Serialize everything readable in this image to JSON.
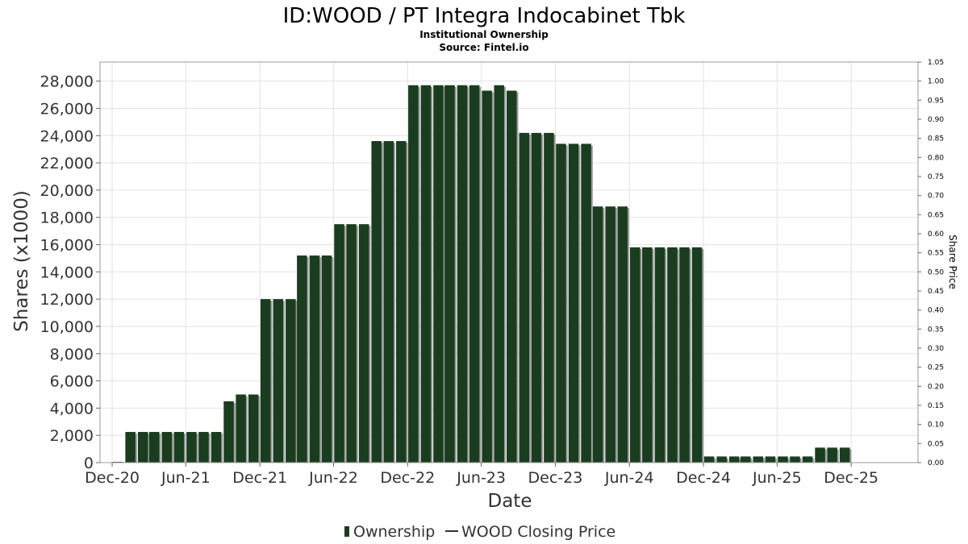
{
  "chart_data": {
    "type": "bar",
    "title": "ID:WOOD / PT Integra Indocabinet Tbk",
    "subtitle_lines": [
      "Institutional Ownership",
      "Source: Fintel.io"
    ],
    "xlabel": "Date",
    "ylabel": "Shares (x1000)",
    "y2label": "Share Price",
    "ylim": [
      0,
      29400
    ],
    "y_ticks": [
      0,
      2000,
      4000,
      6000,
      8000,
      10000,
      12000,
      14000,
      16000,
      18000,
      20000,
      22000,
      24000,
      26000,
      28000
    ],
    "y_tick_labels": [
      "0",
      "2,000",
      "4,000",
      "6,000",
      "8,000",
      "10,000",
      "12,000",
      "14,000",
      "16,000",
      "18,000",
      "20,000",
      "22,000",
      "24,000",
      "26,000",
      "28,000"
    ],
    "y2lim": [
      0,
      1.05
    ],
    "y2_ticks": [
      0.0,
      0.05,
      0.1,
      0.15,
      0.2,
      0.25,
      0.3,
      0.35,
      0.4,
      0.45,
      0.5,
      0.55,
      0.6,
      0.65,
      0.7,
      0.75,
      0.8,
      0.85,
      0.9,
      0.95,
      1.0,
      1.05
    ],
    "y2_tick_labels": [
      "0.00",
      "0.05",
      "0.10",
      "0.15",
      "0.20",
      "0.25",
      "0.30",
      "0.35",
      "0.40",
      "0.45",
      "0.50",
      "0.55",
      "0.60",
      "0.65",
      "0.70",
      "0.75",
      "0.80",
      "0.85",
      "0.90",
      "0.95",
      "1.00",
      "1.05"
    ],
    "x_range": [
      "2020-11-01",
      "2026-05-15"
    ],
    "x_ticks": [
      "2020-12-01",
      "2021-06-01",
      "2021-12-01",
      "2022-06-01",
      "2022-12-01",
      "2023-06-01",
      "2023-12-01",
      "2024-06-01",
      "2024-12-01",
      "2025-06-01",
      "2025-12-01"
    ],
    "x_tick_labels": [
      "Dec-20",
      "Jun-21",
      "Dec-21",
      "Jun-22",
      "Dec-22",
      "Jun-23",
      "Dec-23",
      "Jun-24",
      "Dec-24",
      "Jun-25",
      "Dec-25"
    ],
    "grid": true,
    "legend_placement": "bottom-center",
    "series": [
      {
        "name": "Ownership",
        "type": "bar",
        "color": "#1a3d1f",
        "x": [
          "2020-12-15",
          "2021-01-15",
          "2021-02-15",
          "2021-03-15",
          "2021-04-15",
          "2021-05-15",
          "2021-06-15",
          "2021-07-15",
          "2021-08-15",
          "2021-09-15",
          "2021-10-15",
          "2021-11-15",
          "2021-12-15",
          "2022-01-15",
          "2022-02-15",
          "2022-03-15",
          "2022-04-15",
          "2022-05-15",
          "2022-06-15",
          "2022-07-15",
          "2022-08-15",
          "2022-09-15",
          "2022-10-15",
          "2022-11-15",
          "2022-12-15",
          "2023-01-15",
          "2023-02-15",
          "2023-03-15",
          "2023-04-15",
          "2023-05-15",
          "2023-06-15",
          "2023-07-15",
          "2023-08-15",
          "2023-09-15",
          "2023-10-15",
          "2023-11-15",
          "2023-12-15",
          "2024-01-15",
          "2024-02-15",
          "2024-03-15",
          "2024-04-15",
          "2024-05-15",
          "2024-06-15",
          "2024-07-15",
          "2024-08-15",
          "2024-09-15",
          "2024-10-15",
          "2024-11-15",
          "2024-12-15",
          "2025-01-15",
          "2025-02-15",
          "2025-03-15",
          "2025-04-15",
          "2025-05-15",
          "2025-06-15",
          "2025-07-15",
          "2025-08-15",
          "2025-09-15",
          "2025-10-15",
          "2025-11-15"
        ],
        "values": [
          0,
          2250,
          2250,
          2250,
          2250,
          2250,
          2250,
          2250,
          2250,
          4500,
          5000,
          5000,
          12000,
          12000,
          12000,
          15200,
          15200,
          15200,
          17500,
          17500,
          17500,
          23600,
          23600,
          23600,
          27700,
          27700,
          27700,
          27700,
          27700,
          27700,
          27300,
          27700,
          27300,
          24200,
          24200,
          24200,
          23400,
          23400,
          23400,
          18800,
          18800,
          18800,
          15800,
          15800,
          15800,
          15800,
          15800,
          15800,
          450,
          450,
          450,
          450,
          450,
          450,
          450,
          450,
          450,
          1100,
          1100,
          1100
        ]
      }
    ],
    "legend_entries": [
      {
        "label": "Ownership",
        "marker": "bar",
        "color": "#1a3d1f"
      },
      {
        "label": "WOOD Closing Price",
        "marker": "line",
        "color": "#333333"
      }
    ]
  }
}
